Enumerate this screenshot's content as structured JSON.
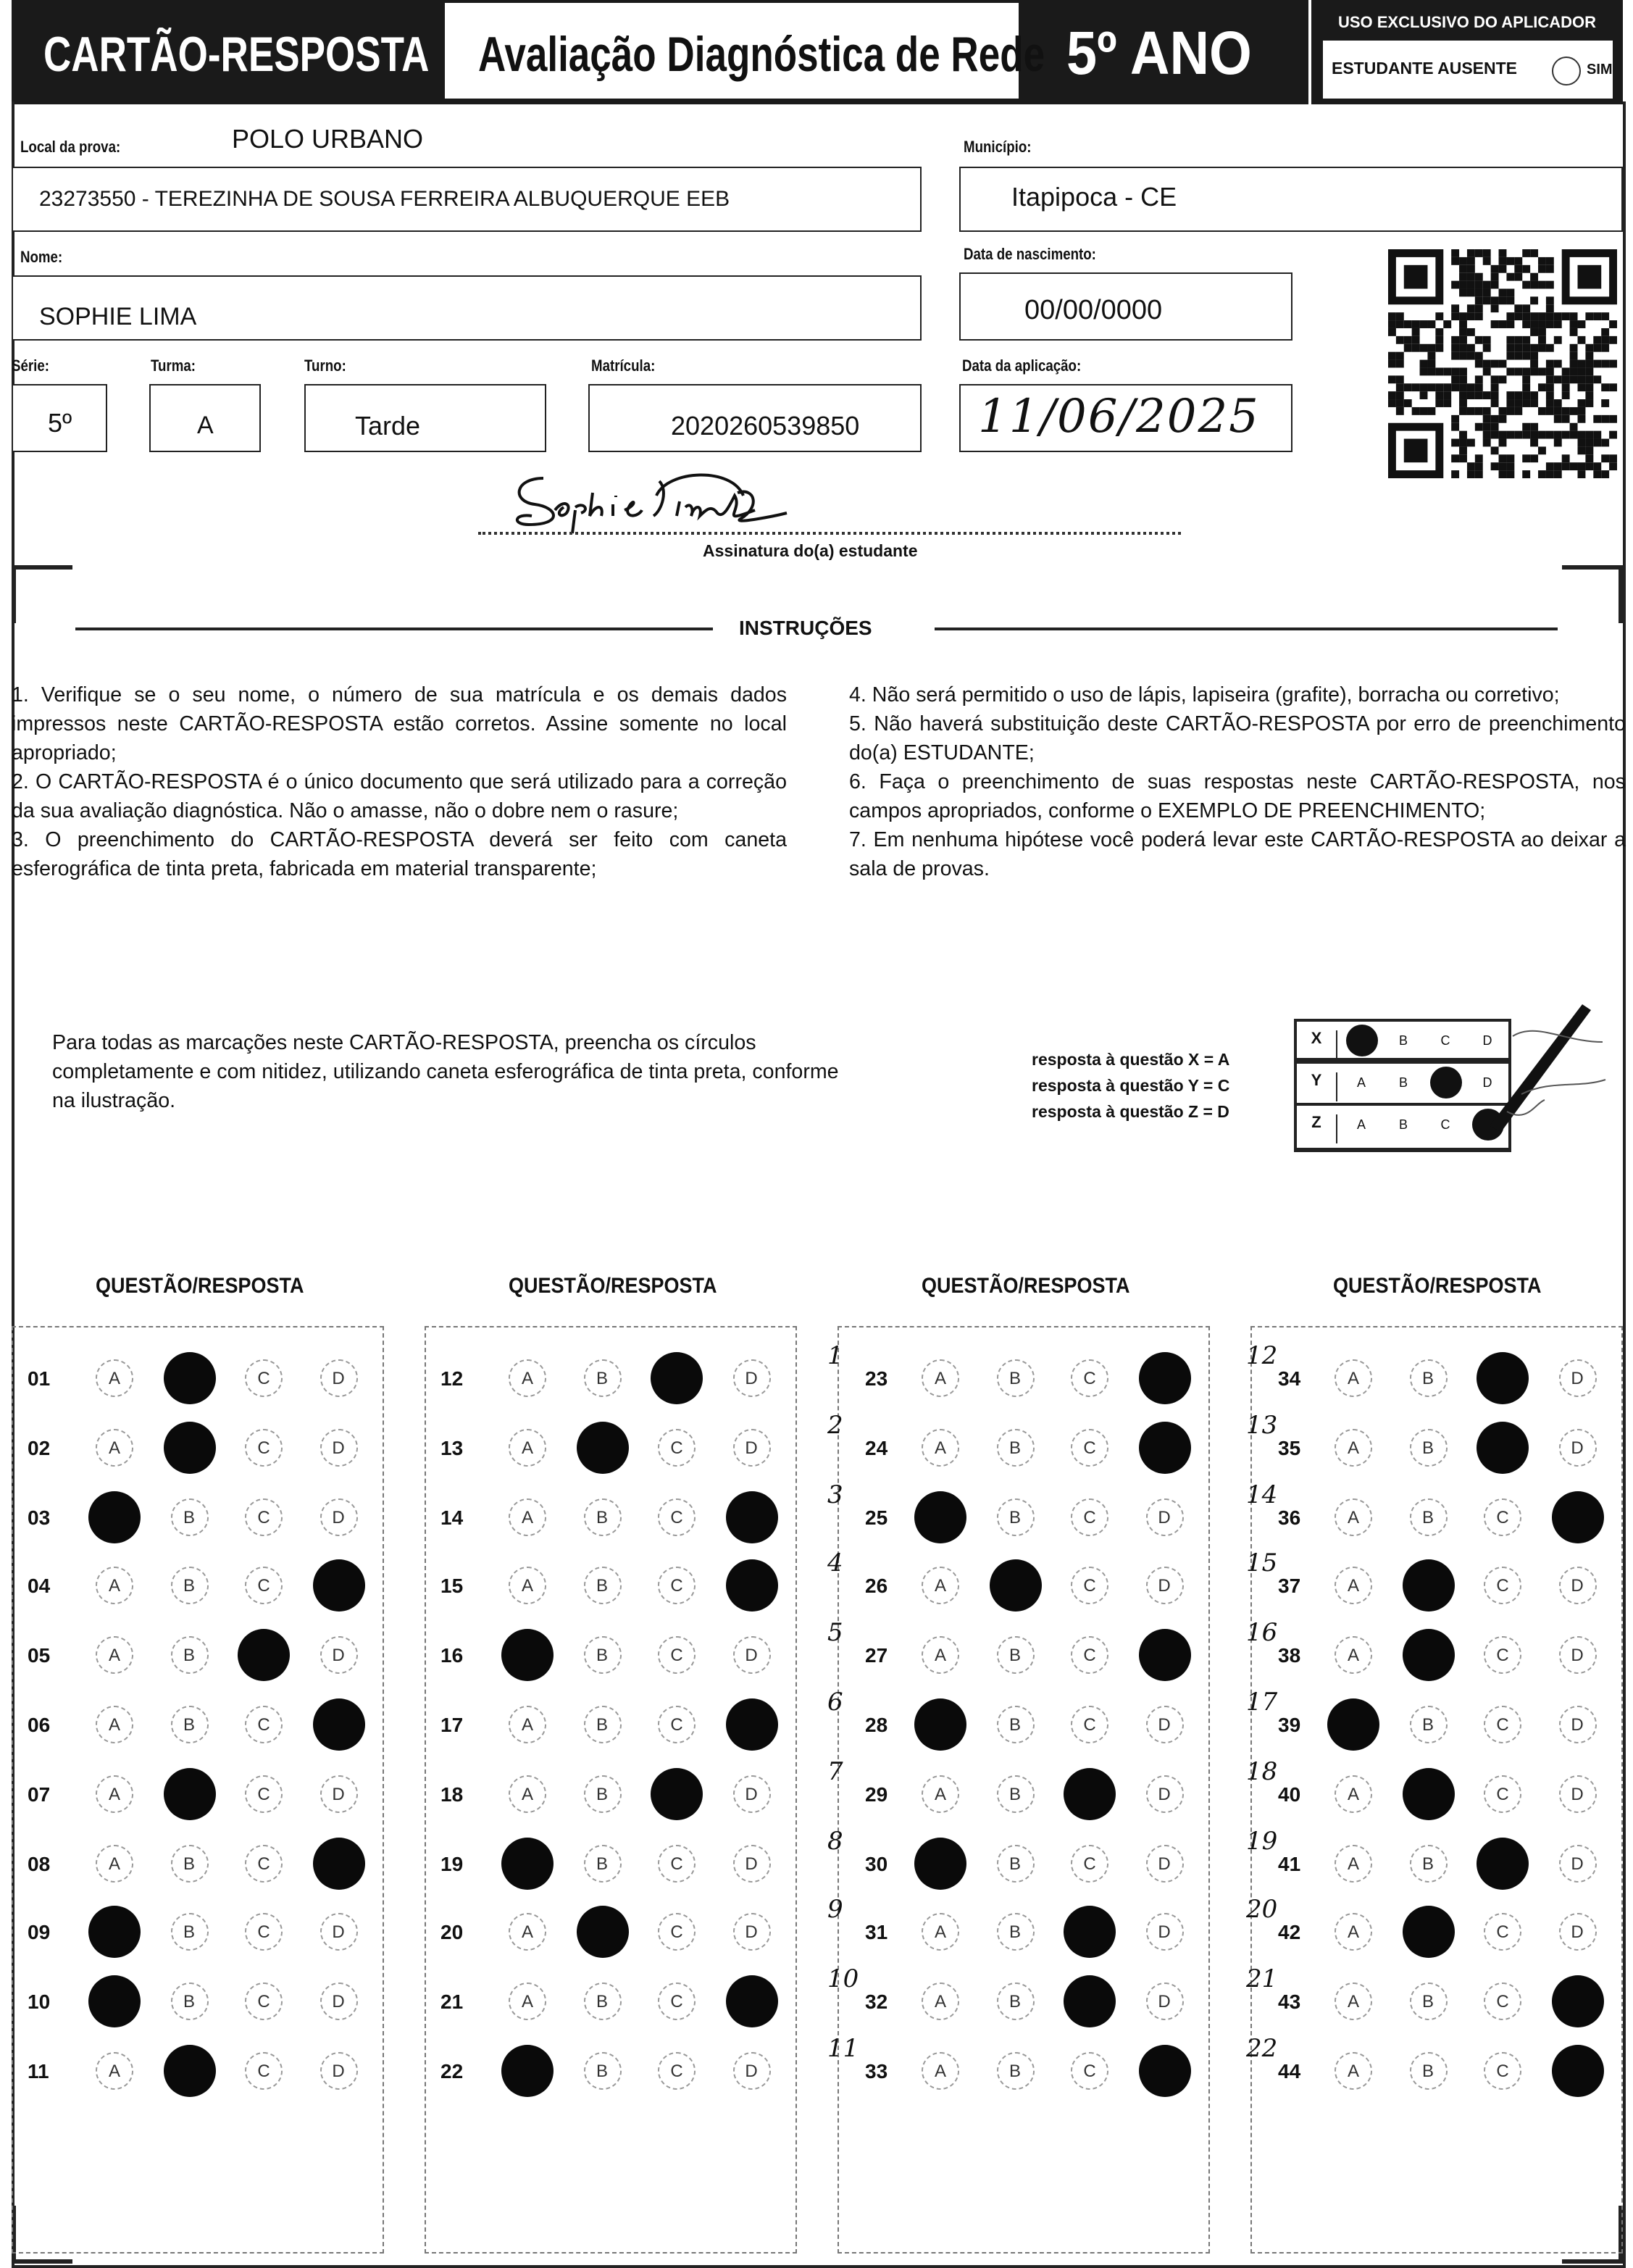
{
  "header": {
    "card_title": "CARTÃO-RESPOSTA",
    "exam_name": "Avaliação Diagnóstica de Rede",
    "grade": "5º ANO",
    "applicator_box": {
      "title": "USO EXCLUSIVO DO APLICADOR",
      "absent_label": "ESTUDANTE AUSENTE",
      "yes_label": "SIM",
      "absent_checked": false
    }
  },
  "fields": {
    "local_label": "Local da prova:",
    "local_value": "POLO URBANO",
    "school": "23273550 - TEREZINHA DE SOUSA FERREIRA ALBUQUERQUE EEB",
    "municipio_label": "Município:",
    "municipio": "Itapipoca - CE",
    "nome_label": "Nome:",
    "nome": "SOPHIE LIMA",
    "nascimento_label": "Data de nascimento:",
    "nascimento": "00/00/0000",
    "serie_label": "Série:",
    "serie": "5º",
    "turma_label": "Turma:",
    "turma": "A",
    "turno_label": "Turno:",
    "turno": "Tarde",
    "matricula_label": "Matrícula:",
    "matricula": "2020260539850",
    "aplicacao_label": "Data da aplicação:",
    "aplicacao": "11/06/2025",
    "signature_label": "Assinatura do(a) estudante",
    "signature": "Sophie Lima"
  },
  "instructions": {
    "title": "INSTRUÇÕES",
    "left": [
      "1. Verifique se o seu nome, o número de sua matrícula e os demais dados impressos neste CARTÃO-RESPOSTA estão corretos. Assine somente no local apropriado;",
      "2. O CARTÃO-RESPOSTA é o único documento que será utilizado para a correção da sua avaliação diagnóstica. Não o amasse, não o dobre nem o rasure;",
      "3. O preenchimento do CARTÃO-RESPOSTA deverá ser feito com caneta esferográfica de tinta preta, fabricada em material transparente;"
    ],
    "right": [
      "4. Não será permitido o uso de lápis, lapiseira (grafite), borracha ou corretivo;",
      "5. Não haverá substituição deste CARTÃO-RESPOSTA por erro de preenchimento do(a) ESTUDANTE;",
      "6. Faça o preenchimento de suas respostas neste CARTÃO-RESPOSTA, nos campos apropriados, conforme o EXEMPLO DE PREENCHIMENTO;",
      "7. Em nenhuma hipótese você poderá levar este CARTÃO-RESPOSTA ao deixar a sala de provas."
    ]
  },
  "example": {
    "text": "Para todas as marcações neste CARTÃO-RESPOSTA, preencha os círculos completamente e com nitidez, utilizando caneta esferográfica de tinta preta, conforme na ilustração.",
    "legend": [
      "resposta à questão X = A",
      "resposta à questão Y = C",
      "resposta à questão Z = D"
    ],
    "rows": [
      {
        "label": "X",
        "marked": "A"
      },
      {
        "label": "Y",
        "marked": "C"
      },
      {
        "label": "Z",
        "marked": "D"
      }
    ],
    "options": [
      "A",
      "B",
      "C",
      "D"
    ]
  },
  "answers": {
    "column_header": "QUESTÃO/RESPOSTA",
    "options": [
      "A",
      "B",
      "C",
      "D"
    ],
    "columns": [
      [
        {
          "num": "01",
          "marked": "B"
        },
        {
          "num": "02",
          "marked": "B"
        },
        {
          "num": "03",
          "marked": "A"
        },
        {
          "num": "04",
          "marked": "D"
        },
        {
          "num": "05",
          "marked": "C"
        },
        {
          "num": "06",
          "marked": "D"
        },
        {
          "num": "07",
          "marked": "B"
        },
        {
          "num": "08",
          "marked": "D"
        },
        {
          "num": "09",
          "marked": "A"
        },
        {
          "num": "10",
          "marked": "A"
        },
        {
          "num": "11",
          "marked": "B"
        }
      ],
      [
        {
          "num": "12",
          "marked": "C"
        },
        {
          "num": "13",
          "marked": "B"
        },
        {
          "num": "14",
          "marked": "D"
        },
        {
          "num": "15",
          "marked": "D"
        },
        {
          "num": "16",
          "marked": "A"
        },
        {
          "num": "17",
          "marked": "D"
        },
        {
          "num": "18",
          "marked": "C"
        },
        {
          "num": "19",
          "marked": "A"
        },
        {
          "num": "20",
          "marked": "B"
        },
        {
          "num": "21",
          "marked": "D"
        },
        {
          "num": "22",
          "marked": "A"
        }
      ],
      [
        {
          "num": "23",
          "marked": "D",
          "handwritten": "1"
        },
        {
          "num": "24",
          "marked": "D",
          "handwritten": "2"
        },
        {
          "num": "25",
          "marked": "A",
          "handwritten": "3"
        },
        {
          "num": "26",
          "marked": "B",
          "handwritten": "4"
        },
        {
          "num": "27",
          "marked": "D",
          "handwritten": "5"
        },
        {
          "num": "28",
          "marked": "A",
          "handwritten": "6"
        },
        {
          "num": "29",
          "marked": "C",
          "handwritten": "7"
        },
        {
          "num": "30",
          "marked": "A",
          "handwritten": "8"
        },
        {
          "num": "31",
          "marked": "C",
          "handwritten": "9"
        },
        {
          "num": "32",
          "marked": "C",
          "handwritten": "10"
        },
        {
          "num": "33",
          "marked": "D",
          "handwritten": "11"
        }
      ],
      [
        {
          "num": "34",
          "marked": "C",
          "handwritten": "12"
        },
        {
          "num": "35",
          "marked": "C",
          "handwritten": "13"
        },
        {
          "num": "36",
          "marked": "D",
          "handwritten": "14"
        },
        {
          "num": "37",
          "marked": "B",
          "handwritten": "15"
        },
        {
          "num": "38",
          "marked": "B",
          "handwritten": "16"
        },
        {
          "num": "39",
          "marked": "A",
          "handwritten": "17"
        },
        {
          "num": "40",
          "marked": "B",
          "handwritten": "18"
        },
        {
          "num": "41",
          "marked": "C",
          "handwritten": "19"
        },
        {
          "num": "42",
          "marked": "B",
          "handwritten": "20"
        },
        {
          "num": "43",
          "marked": "D",
          "handwritten": "21"
        },
        {
          "num": "44",
          "marked": "D",
          "handwritten": "22"
        }
      ]
    ]
  }
}
